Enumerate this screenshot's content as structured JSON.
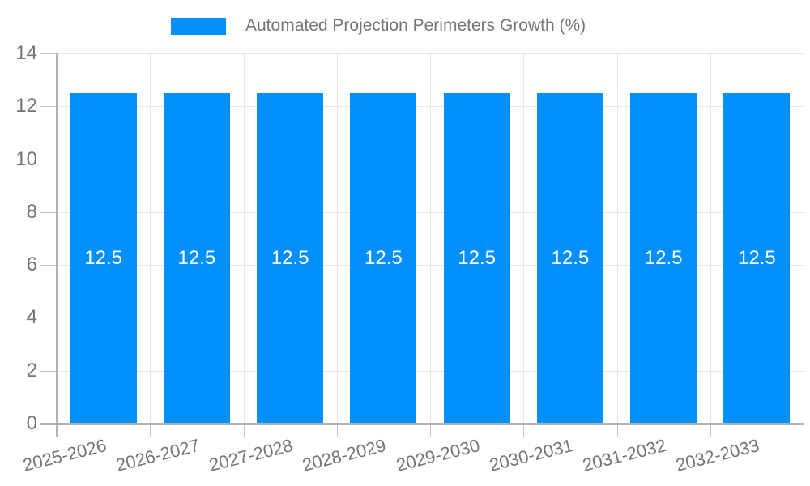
{
  "chart_data": {
    "type": "bar",
    "title": "Automated Projection Perimeters Growth (%)",
    "categories": [
      "2025-2026",
      "2026-2027",
      "2027-2028",
      "2028-2029",
      "2029-2030",
      "2030-2031",
      "2031-2032",
      "2032-2033"
    ],
    "values": [
      12.5,
      12.5,
      12.5,
      12.5,
      12.5,
      12.5,
      12.5,
      12.5
    ],
    "bar_labels": [
      "12.5",
      "12.5",
      "12.5",
      "12.5",
      "12.5",
      "12.5",
      "12.5",
      "12.5"
    ],
    "xlabel": "",
    "ylabel": "",
    "ylim": [
      0,
      14
    ],
    "yticks": [
      "0",
      "2",
      "4",
      "6",
      "8",
      "10",
      "12",
      "14"
    ],
    "grid": true,
    "legend_position": "top",
    "colors": {
      "bar": "#0190FB",
      "grid": "#e7e7e7",
      "axis": "#b2b2b2",
      "tick_mark": "#c4c4c4",
      "tick_label": "#757575",
      "bar_label": "#ffffff",
      "legend_text": "#757575",
      "background": "#ffffff"
    }
  }
}
